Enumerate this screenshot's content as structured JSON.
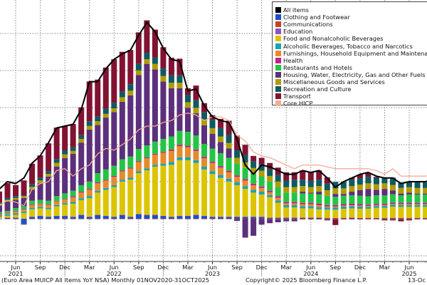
{
  "chart_data": {
    "type": "bar",
    "stacked": true,
    "frequency": "monthly",
    "x_start": "2021-04",
    "x_end": "2025-09",
    "ylim": [
      -2,
      10.8
    ],
    "yticks": [
      -2,
      0,
      2,
      4,
      6,
      8,
      10
    ],
    "grid": true,
    "legend_position": "top-right",
    "x_tick_labels": [
      {
        "month": "Jun",
        "year": "2021"
      },
      {
        "month": "Sep"
      },
      {
        "month": "Dec"
      },
      {
        "month": "Mar"
      },
      {
        "month": "Jun",
        "year": "2022"
      },
      {
        "month": "Sep"
      },
      {
        "month": "Dec"
      },
      {
        "month": "Mar"
      },
      {
        "month": "Jun",
        "year": "2023"
      },
      {
        "month": "Sep"
      },
      {
        "month": "Dec"
      },
      {
        "month": "Mar"
      },
      {
        "month": "Jun",
        "year": "2024"
      },
      {
        "month": "Sep"
      },
      {
        "month": "Dec"
      },
      {
        "month": "Mar"
      },
      {
        "month": "Jun",
        "year": "2025"
      }
    ],
    "series": [
      {
        "name": "Clothing and Footwear",
        "color": "#1f4fc8",
        "kind": "bar",
        "values": [
          0.0,
          0.05,
          0.05,
          -0.3,
          0.1,
          0.15,
          0.1,
          0.15,
          0.15,
          0.1,
          0.2,
          0.1,
          0.2,
          0.15,
          0.1,
          0.2,
          0.1,
          0.25,
          0.2,
          0.2,
          0.15,
          0.1,
          0.15,
          0.15,
          0.2,
          0.15,
          0.1,
          0.1,
          0.1,
          0.1,
          0.1,
          0.1,
          0.1,
          0.05,
          0.05,
          0.05,
          0.05,
          0.05,
          0.05,
          0.05,
          0.03,
          0.03,
          0.03,
          0.05,
          0.03,
          0.03,
          0.03,
          0.03,
          0.04,
          0.03,
          0.03,
          0.03,
          0.03,
          0.04
        ]
      },
      {
        "name": "Communications",
        "color": "#c4441c",
        "kind": "bar",
        "values": [
          -0.02,
          -0.02,
          -0.02,
          -0.02,
          -0.02,
          -0.02,
          -0.02,
          -0.02,
          -0.02,
          -0.02,
          -0.02,
          -0.02,
          -0.02,
          -0.02,
          -0.02,
          -0.02,
          -0.02,
          -0.02,
          -0.02,
          -0.02,
          -0.02,
          -0.02,
          -0.02,
          -0.02,
          -0.02,
          -0.02,
          -0.02,
          -0.02,
          -0.02,
          -0.02,
          -0.02,
          -0.02,
          -0.02,
          -0.04,
          -0.04,
          -0.04,
          -0.04,
          -0.04,
          -0.04,
          -0.04,
          -0.04,
          -0.04,
          -0.04,
          -0.04,
          -0.04,
          -0.04,
          -0.04,
          -0.04,
          -0.04,
          -0.04,
          -0.04,
          -0.04,
          -0.04,
          -0.04
        ]
      },
      {
        "name": "Education",
        "color": "#9050c4",
        "kind": "bar",
        "values": [
          0.01,
          0.01,
          0.01,
          0.01,
          0.01,
          0.01,
          0.01,
          0.01,
          0.01,
          0.01,
          0.01,
          0.01,
          0.01,
          0.01,
          0.01,
          0.01,
          0.01,
          0.01,
          0.01,
          0.01,
          0.01,
          0.01,
          0.01,
          0.01,
          0.01,
          0.01,
          0.01,
          0.01,
          0.01,
          0.01,
          0.01,
          0.01,
          0.01,
          0.01,
          0.01,
          0.01,
          0.01,
          0.01,
          0.01,
          0.01,
          0.01,
          0.01,
          0.01,
          0.01,
          0.01,
          0.01,
          0.01,
          0.01,
          0.01,
          0.01,
          0.01,
          0.01,
          0.01,
          0.01
        ]
      },
      {
        "name": "Food and Nonalcoholic Beverages",
        "color": "#dcc400",
        "kind": "bar",
        "values": [
          0.1,
          0.1,
          0.15,
          0.3,
          0.4,
          0.4,
          0.4,
          0.5,
          0.6,
          0.7,
          0.8,
          1.0,
          1.2,
          1.4,
          1.6,
          1.8,
          2.0,
          2.2,
          2.4,
          2.6,
          2.7,
          2.8,
          3.0,
          3.0,
          2.8,
          2.5,
          2.3,
          2.1,
          1.9,
          1.7,
          1.5,
          1.3,
          1.2,
          1.1,
          0.8,
          0.55,
          0.55,
          0.5,
          0.5,
          0.45,
          0.45,
          0.45,
          0.5,
          0.5,
          0.5,
          0.5,
          0.55,
          0.55,
          0.6,
          0.6,
          0.6,
          0.6,
          0.6,
          0.6
        ]
      },
      {
        "name": "Alcoholic Beverages, Tobacco and Narcotics",
        "color": "#18a2b4",
        "kind": "bar",
        "values": [
          0.08,
          0.08,
          0.08,
          0.08,
          0.08,
          0.08,
          0.08,
          0.08,
          0.08,
          0.1,
          0.1,
          0.1,
          0.1,
          0.1,
          0.1,
          0.1,
          0.1,
          0.1,
          0.1,
          0.1,
          0.1,
          0.15,
          0.15,
          0.15,
          0.15,
          0.15,
          0.15,
          0.15,
          0.15,
          0.15,
          0.15,
          0.15,
          0.15,
          0.12,
          0.12,
          0.12,
          0.12,
          0.12,
          0.12,
          0.12,
          0.12,
          0.12,
          0.12,
          0.12,
          0.12,
          0.1,
          0.1,
          0.1,
          0.1,
          0.1,
          0.1,
          0.1,
          0.1,
          0.1
        ]
      },
      {
        "name": "Furnishings, Household Equipment and Maintenance",
        "color": "#e48c2c",
        "kind": "bar",
        "values": [
          0.05,
          0.05,
          0.1,
          0.1,
          0.15,
          0.15,
          0.15,
          0.2,
          0.2,
          0.25,
          0.3,
          0.35,
          0.4,
          0.4,
          0.45,
          0.45,
          0.5,
          0.5,
          0.55,
          0.55,
          0.6,
          0.6,
          0.6,
          0.55,
          0.5,
          0.45,
          0.45,
          0.4,
          0.35,
          0.3,
          0.3,
          0.25,
          0.2,
          0.15,
          0.15,
          0.1,
          0.1,
          0.1,
          0.1,
          0.1,
          0.05,
          0.05,
          0.05,
          0.05,
          0.05,
          0.05,
          0.05,
          0.05,
          0.05,
          0.05,
          0.05,
          0.05,
          0.05,
          0.05
        ]
      },
      {
        "name": "Health",
        "color": "#c4208c",
        "kind": "bar",
        "values": [
          0.03,
          0.03,
          0.03,
          0.03,
          0.03,
          0.03,
          0.03,
          0.03,
          0.03,
          0.05,
          0.05,
          0.05,
          0.05,
          0.05,
          0.05,
          0.05,
          0.05,
          0.05,
          0.05,
          0.05,
          0.05,
          0.08,
          0.08,
          0.08,
          0.08,
          0.08,
          0.08,
          0.08,
          0.08,
          0.08,
          0.08,
          0.08,
          0.08,
          0.08,
          0.08,
          0.08,
          0.08,
          0.08,
          0.08,
          0.08,
          0.08,
          0.08,
          0.08,
          0.08,
          0.08,
          0.07,
          0.07,
          0.07,
          0.07,
          0.07,
          0.07,
          0.07,
          0.07,
          0.07
        ]
      },
      {
        "name": "Restaurants and Hotels",
        "color": "#24c444",
        "kind": "bar",
        "values": [
          0.1,
          0.1,
          0.15,
          0.15,
          0.2,
          0.2,
          0.2,
          0.25,
          0.3,
          0.3,
          0.35,
          0.4,
          0.5,
          0.55,
          0.55,
          0.6,
          0.6,
          0.65,
          0.65,
          0.65,
          0.7,
          0.7,
          0.75,
          0.75,
          0.75,
          0.7,
          0.7,
          0.7,
          0.7,
          0.65,
          0.6,
          0.55,
          0.55,
          0.5,
          0.5,
          0.5,
          0.5,
          0.5,
          0.5,
          0.5,
          0.5,
          0.45,
          0.45,
          0.45,
          0.45,
          0.45,
          0.45,
          0.45,
          0.45,
          0.4,
          0.45,
          0.45,
          0.45,
          0.45
        ]
      },
      {
        "name": "Housing, Water, Electricity, Gas and Other Fuels",
        "color": "#5c2f7c",
        "kind": "bar",
        "values": [
          0.35,
          0.5,
          0.45,
          0.45,
          0.6,
          0.9,
          1.3,
          1.6,
          1.9,
          2.0,
          2.3,
          2.8,
          2.6,
          2.8,
          2.9,
          3.1,
          3.3,
          4.0,
          4.4,
          3.9,
          3.1,
          2.6,
          2.3,
          1.3,
          1.2,
          1.0,
          0.8,
          0.6,
          0.5,
          -0.1,
          -1.0,
          -0.9,
          -0.3,
          -0.2,
          -0.15,
          -0.1,
          -0.1,
          0.1,
          0.05,
          0.15,
          -0.05,
          0.15,
          0.1,
          0.2,
          0.3,
          0.4,
          0.3,
          0.35,
          0.2,
          0.1,
          0.1,
          0.05,
          0.05,
          0.15
        ]
      },
      {
        "name": "Miscellaneous Goods and Services",
        "color": "#b09c00",
        "kind": "bar",
        "values": [
          0.1,
          0.1,
          0.1,
          0.1,
          0.15,
          0.15,
          0.15,
          0.2,
          0.2,
          0.15,
          0.2,
          0.2,
          0.2,
          0.2,
          0.2,
          0.25,
          0.25,
          0.25,
          0.25,
          0.3,
          0.3,
          0.3,
          0.3,
          0.3,
          0.3,
          0.3,
          0.3,
          0.3,
          0.3,
          0.3,
          0.3,
          0.3,
          0.3,
          0.3,
          0.3,
          0.3,
          0.3,
          0.3,
          0.3,
          0.3,
          0.3,
          0.3,
          0.3,
          0.3,
          0.3,
          0.3,
          0.3,
          0.3,
          0.3,
          0.3,
          0.3,
          0.3,
          0.3,
          0.3
        ]
      },
      {
        "name": "Recreation and Culture",
        "color": "#0e5a62",
        "kind": "bar",
        "values": [
          0.05,
          0.1,
          0.1,
          0.05,
          0.15,
          0.15,
          0.15,
          0.2,
          0.2,
          0.2,
          0.2,
          0.25,
          0.25,
          0.3,
          0.3,
          0.3,
          0.35,
          0.35,
          0.35,
          0.35,
          0.4,
          0.4,
          0.4,
          0.4,
          0.4,
          0.4,
          0.45,
          0.45,
          0.45,
          0.4,
          0.4,
          0.35,
          0.35,
          0.35,
          0.35,
          0.35,
          0.4,
          0.35,
          0.35,
          0.35,
          0.35,
          0.35,
          0.35,
          0.35,
          0.35,
          0.35,
          0.35,
          0.3,
          0.4,
          0.3,
          0.3,
          0.3,
          0.3,
          0.3
        ]
      },
      {
        "name": "Transport",
        "color": "#821232",
        "kind": "bar",
        "values": [
          0.6,
          0.8,
          0.6,
          0.8,
          1.1,
          1.2,
          1.5,
          1.7,
          1.35,
          1.25,
          1.5,
          2.15,
          2.0,
          2.2,
          2.35,
          2.15,
          1.85,
          1.7,
          1.75,
          1.5,
          1.15,
          0.95,
          0.9,
          0.35,
          0.8,
          0.5,
          0.25,
          0.5,
          0.75,
          0.8,
          0.55,
          0.3,
          0.35,
          0.35,
          0.4,
          0.45,
          0.4,
          0.5,
          0.45,
          0.5,
          0.35,
          -0.3,
          0.0,
          0.1,
          0.2,
          0.2,
          0.05,
          -0.05,
          -0.05,
          -0.1,
          -0.05,
          0.0,
          0.0,
          0.1
        ]
      }
    ],
    "lines": [
      {
        "name": "All items",
        "color": "#000000",
        "values": [
          1.6,
          2.0,
          1.9,
          2.2,
          3.0,
          3.4,
          4.1,
          4.9,
          5.0,
          5.1,
          5.9,
          7.4,
          7.4,
          8.1,
          8.6,
          8.9,
          9.1,
          9.9,
          10.6,
          10.1,
          9.2,
          8.6,
          8.5,
          6.9,
          7.0,
          6.1,
          5.5,
          5.3,
          5.2,
          4.3,
          2.9,
          2.4,
          2.9,
          2.8,
          2.6,
          2.4,
          2.4,
          2.6,
          2.5,
          2.6,
          2.2,
          1.7,
          2.0,
          2.2,
          2.4,
          2.5,
          2.3,
          2.2,
          2.2,
          1.9,
          2.0,
          2.0,
          2.0,
          2.2
        ]
      },
      {
        "name": "Core HICP",
        "color": "#f4ac96",
        "values": [
          0.7,
          1.0,
          0.9,
          0.7,
          1.6,
          1.9,
          2.0,
          2.6,
          2.7,
          2.3,
          2.7,
          2.9,
          3.5,
          3.8,
          3.7,
          4.0,
          4.3,
          4.8,
          5.0,
          5.0,
          5.2,
          5.3,
          5.6,
          5.7,
          5.6,
          5.3,
          5.5,
          5.5,
          5.3,
          4.5,
          4.2,
          3.6,
          3.4,
          3.3,
          3.1,
          2.9,
          2.7,
          2.9,
          2.9,
          2.9,
          2.8,
          2.7,
          2.7,
          2.7,
          2.7,
          2.7,
          2.6,
          2.4,
          2.7,
          2.3,
          2.3,
          2.3,
          2.3,
          2.4
        ]
      }
    ],
    "legend": [
      {
        "label": "All items",
        "color": "#000000",
        "value": "2.2"
      },
      {
        "label": "Clothing and Footwear",
        "color": "#1f4fc8",
        "value": "0.04"
      },
      {
        "label": "Communications",
        "color": "#c4441c",
        "value": "-0.04"
      },
      {
        "label": "Education",
        "color": "#9050c4",
        "value": "0.01"
      },
      {
        "label": "Food and Nonalcoholic Beverages",
        "color": "#dcc400",
        "value": "0.6"
      },
      {
        "label": "Alcoholic Beverages, Tobacco and Narcotics",
        "color": "#18a2b4",
        "value": "0.1"
      },
      {
        "label": "Furnishings, Household Equipment and Maintenance",
        "color": "#e48c2c",
        "value": "0.05"
      },
      {
        "label": "Health",
        "color": "#c4208c",
        "value": "0.07"
      },
      {
        "label": "Restaurants and Hotels",
        "color": "#24c444",
        "value": "0.45"
      },
      {
        "label": "Housing, Water, Electricity, Gas and Other Fuels",
        "color": "#5c2f7c",
        "value": "0.15"
      },
      {
        "label": "Miscellaneous Goods and Services",
        "color": "#b09c00",
        "value": "0.3"
      },
      {
        "label": "Recreation and Culture",
        "color": "#0e5a62",
        "value": "0.3"
      },
      {
        "label": "Transport",
        "color": "#821232",
        "value": "0.1"
      },
      {
        "label": "Core HICP",
        "color": "#f4ac96",
        "value": "2.4"
      }
    ]
  },
  "footer": {
    "source": "(Euro Area MUICP All Items YoY NSA) Monthly 01NOV2020-31OCT2025",
    "copyright": "Copyright© 2025 Bloomberg Finance L.P.",
    "date": "13-Oc"
  }
}
